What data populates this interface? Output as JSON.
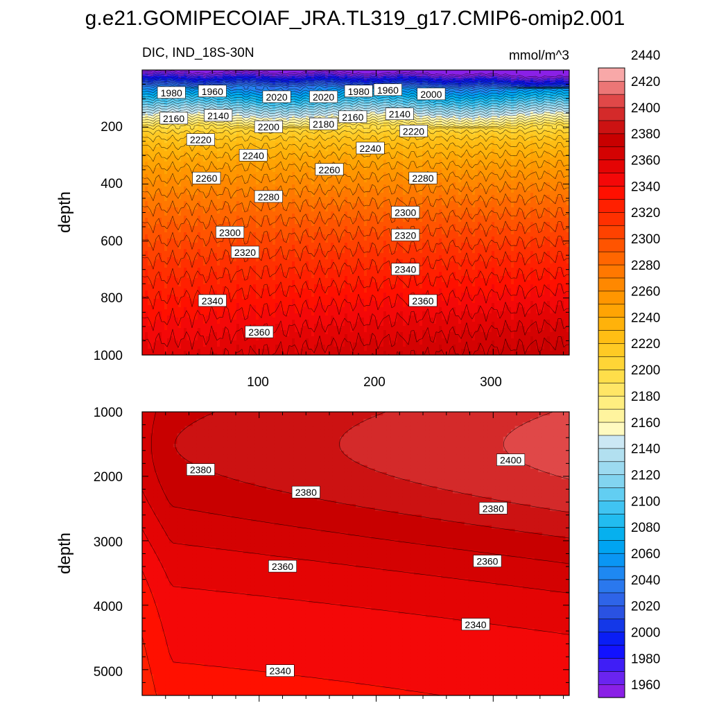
{
  "chart_data": [
    {
      "type": "heatmap",
      "subtype": "filled-contour",
      "title": "g.e21.GOMIPECOIAF_JRA.TL319_g17.CMIP6-omip2.001",
      "subtitle_left": "DIC, IND_18S-30N",
      "subtitle_right": "mmol/m^3",
      "xlabel": "",
      "ylabel": "depth",
      "xlim": [
        0,
        365
      ],
      "ylim": [
        1000,
        0
      ],
      "x_ticks": [
        "100",
        "200",
        "300"
      ],
      "y_ticks": [
        "200",
        "400",
        "600",
        "800",
        "1000"
      ],
      "grid": false,
      "contour_labels": [
        {
          "x": 25,
          "y": 80,
          "value": "1980"
        },
        {
          "x": 60,
          "y": 75,
          "value": "1960"
        },
        {
          "x": 115,
          "y": 95,
          "value": "2020"
        },
        {
          "x": 155,
          "y": 95,
          "value": "2020"
        },
        {
          "x": 185,
          "y": 75,
          "value": "1980"
        },
        {
          "x": 210,
          "y": 70,
          "value": "1960"
        },
        {
          "x": 247,
          "y": 85,
          "value": "2000"
        },
        {
          "x": 27,
          "y": 170,
          "value": "2160"
        },
        {
          "x": 65,
          "y": 160,
          "value": "2140"
        },
        {
          "x": 180,
          "y": 165,
          "value": "2160"
        },
        {
          "x": 220,
          "y": 155,
          "value": "2140"
        },
        {
          "x": 155,
          "y": 190,
          "value": "2180"
        },
        {
          "x": 108,
          "y": 200,
          "value": "2200"
        },
        {
          "x": 232,
          "y": 215,
          "value": "2220"
        },
        {
          "x": 50,
          "y": 245,
          "value": "2220"
        },
        {
          "x": 95,
          "y": 300,
          "value": "2240"
        },
        {
          "x": 195,
          "y": 275,
          "value": "2240"
        },
        {
          "x": 55,
          "y": 380,
          "value": "2260"
        },
        {
          "x": 160,
          "y": 350,
          "value": "2260"
        },
        {
          "x": 240,
          "y": 380,
          "value": "2280"
        },
        {
          "x": 108,
          "y": 445,
          "value": "2280"
        },
        {
          "x": 225,
          "y": 500,
          "value": "2300"
        },
        {
          "x": 75,
          "y": 570,
          "value": "2300"
        },
        {
          "x": 225,
          "y": 580,
          "value": "2320"
        },
        {
          "x": 88,
          "y": 640,
          "value": "2320"
        },
        {
          "x": 225,
          "y": 700,
          "value": "2340"
        },
        {
          "x": 60,
          "y": 810,
          "value": "2340"
        },
        {
          "x": 240,
          "y": 810,
          "value": "2360"
        },
        {
          "x": 100,
          "y": 920,
          "value": "2360"
        }
      ]
    },
    {
      "type": "heatmap",
      "subtype": "filled-contour",
      "xlabel": "",
      "ylabel": "depth",
      "xlim": [
        0,
        365
      ],
      "ylim": [
        5400,
        1000
      ],
      "y_ticks": [
        "1000",
        "2000",
        "3000",
        "4000",
        "5000"
      ],
      "grid": false,
      "contour_labels": [
        {
          "x": 50,
          "y": 1900,
          "value": "2380"
        },
        {
          "x": 140,
          "y": 2250,
          "value": "2380"
        },
        {
          "x": 315,
          "y": 1750,
          "value": "2400"
        },
        {
          "x": 300,
          "y": 2500,
          "value": "2380"
        },
        {
          "x": 120,
          "y": 3400,
          "value": "2360"
        },
        {
          "x": 295,
          "y": 3320,
          "value": "2360"
        },
        {
          "x": 285,
          "y": 4300,
          "value": "2340"
        },
        {
          "x": 118,
          "y": 5020,
          "value": "2340"
        }
      ]
    }
  ],
  "colorbar": {
    "tick_labels": [
      "1960",
      "1980",
      "2000",
      "2020",
      "2040",
      "2060",
      "2080",
      "2100",
      "2120",
      "2140",
      "2160",
      "2180",
      "2200",
      "2220",
      "2240",
      "2260",
      "2280",
      "2300",
      "2320",
      "2340",
      "2360",
      "2380",
      "2400",
      "2420",
      "2440"
    ],
    "colors": [
      "#8a20e6",
      "#6a24f0",
      "#3f1ef6",
      "#1212ff",
      "#0a1ef5",
      "#1438e8",
      "#2a52e2",
      "#2e64e8",
      "#2a78ee",
      "#1e88f2",
      "#0a96f4",
      "#00a4f2",
      "#06b0ee",
      "#22bcf0",
      "#40c4f2",
      "#62cef2",
      "#82d4f0",
      "#9cdaf0",
      "#b2e0f0",
      "#cce8f4",
      "#fffac0",
      "#fff49e",
      "#ffee80",
      "#ffe666",
      "#ffde4a",
      "#ffd536",
      "#ffca24",
      "#ffbe14",
      "#ffb20a",
      "#ffa404",
      "#ff9600",
      "#ff8800",
      "#ff7800",
      "#ff6600",
      "#ff5400",
      "#ff4200",
      "#ff3000",
      "#ff2000",
      "#ff1000",
      "#f40808",
      "#e40404",
      "#d40202",
      "#c80000",
      "#cc1212",
      "#d42a2a",
      "#e04848",
      "#ec7676",
      "#f8a8a8"
    ]
  }
}
